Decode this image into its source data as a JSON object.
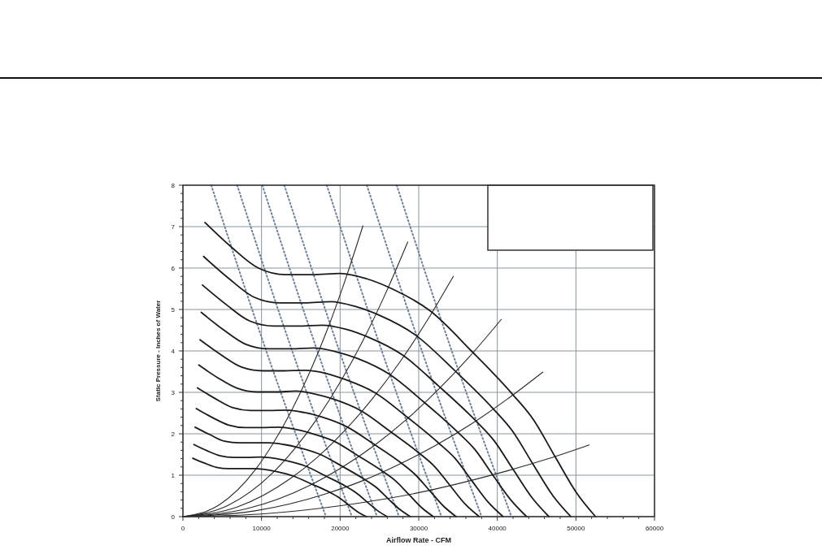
{
  "chart_data": {
    "type": "line",
    "xlabel": "Airflow Rate - CFM",
    "ylabel": "Static Pressure - Inches of Water",
    "xlim": [
      0,
      60000
    ],
    "ylim": [
      0,
      8
    ],
    "xticks": [
      0,
      {
        "value": 2000,
        "label": null
      },
      {
        "value": 4000,
        "label": null
      },
      {
        "value": 6000,
        "label": null
      },
      {
        "value": 8000,
        "label": null
      },
      10000,
      {
        "value": 12000,
        "label": null
      },
      {
        "value": 14000,
        "label": null
      },
      {
        "value": 16000,
        "label": null
      },
      {
        "value": 18000,
        "label": null
      },
      20000,
      {
        "value": 22000,
        "label": null
      },
      {
        "value": 24000,
        "label": null
      },
      {
        "value": 26000,
        "label": null
      },
      {
        "value": 28000,
        "label": null
      },
      30000,
      {
        "value": 32000,
        "label": null
      },
      {
        "value": 34000,
        "label": null
      },
      {
        "value": 36000,
        "label": null
      },
      {
        "value": 38000,
        "label": null
      },
      40000,
      {
        "value": 42000,
        "label": null
      },
      {
        "value": 44000,
        "label": null
      },
      {
        "value": 46000,
        "label": null
      },
      {
        "value": 48000,
        "label": null
      },
      50000,
      {
        "value": 52000,
        "label": null
      },
      {
        "value": 54000,
        "label": null
      },
      {
        "value": 56000,
        "label": null
      },
      {
        "value": 58000,
        "label": null
      },
      60000
    ],
    "yticks": [
      0,
      {
        "value": 0.2,
        "label": null
      },
      {
        "value": 0.4,
        "label": null
      },
      {
        "value": 0.6,
        "label": null
      },
      {
        "value": 0.8,
        "label": null
      },
      1,
      {
        "value": 1.2,
        "label": null
      },
      {
        "value": 1.4,
        "label": null
      },
      {
        "value": 1.6,
        "label": null
      },
      {
        "value": 1.8,
        "label": null
      },
      2,
      {
        "value": 2.2,
        "label": null
      },
      {
        "value": 2.4,
        "label": null
      },
      {
        "value": 2.6,
        "label": null
      },
      {
        "value": 2.8,
        "label": null
      },
      3,
      {
        "value": 3.2,
        "label": null
      },
      {
        "value": 3.4,
        "label": null
      },
      {
        "value": 3.6,
        "label": null
      },
      {
        "value": 3.8,
        "label": null
      },
      4,
      {
        "value": 4.2,
        "label": null
      },
      {
        "value": 4.4,
        "label": null
      },
      {
        "value": 4.6,
        "label": null
      },
      {
        "value": 4.8,
        "label": null
      },
      5,
      {
        "value": 5.2,
        "label": null
      },
      {
        "value": 5.4,
        "label": null
      },
      {
        "value": 5.6,
        "label": null
      },
      {
        "value": 5.8,
        "label": null
      },
      6,
      {
        "value": 6.2,
        "label": null
      },
      {
        "value": 6.4,
        "label": null
      },
      {
        "value": 6.6,
        "label": null
      },
      {
        "value": 6.8,
        "label": null
      },
      7,
      {
        "value": 7.2,
        "label": null
      },
      {
        "value": 7.4,
        "label": null
      },
      {
        "value": 7.6,
        "label": null
      },
      {
        "value": 7.8,
        "label": null
      },
      8
    ],
    "grid": true,
    "marker": "none",
    "line_style": "solid",
    "series": [
      {
        "color": "#6f8196",
        "line_style": "dotted",
        "x": [
          3600,
          10600,
          18200
        ],
        "values": [
          8,
          4,
          0
        ]
      },
      {
        "color": "#6f8196",
        "line_style": "dotted",
        "x": [
          6900,
          13900,
          21500
        ],
        "values": [
          8,
          4,
          0
        ]
      },
      {
        "color": "#6f8196",
        "line_style": "dotted",
        "x": [
          10100,
          17100,
          24700
        ],
        "values": [
          8,
          4,
          0
        ]
      },
      {
        "color": "#6f8196",
        "line_style": "dotted",
        "x": [
          12900,
          19900,
          27500
        ],
        "values": [
          8,
          4,
          0
        ]
      },
      {
        "color": "#6f8196",
        "line_style": "dotted",
        "x": [
          18300,
          25300,
          32900
        ],
        "values": [
          8,
          4,
          0
        ]
      },
      {
        "color": "#6f8196",
        "line_style": "dotted",
        "x": [
          23400,
          30400,
          38000
        ],
        "values": [
          8,
          4,
          0
        ]
      },
      {
        "color": "#6f8196",
        "line_style": "dotted",
        "x": [
          27200,
          34200,
          41800
        ],
        "values": [
          8,
          4,
          0
        ]
      },
      {
        "color": "#2a2a2a",
        "x": [
          0,
          4580,
          9160,
          11450,
          13740,
          16030,
          18320,
          20610,
          22900
        ],
        "values": [
          0,
          0.28,
          1.12,
          1.76,
          2.53,
          3.44,
          4.49,
          5.69,
          7.02
        ]
      },
      {
        "color": "#2a2a2a",
        "x": [
          0,
          5720,
          11440,
          14300,
          17160,
          20020,
          22880,
          25740,
          28600
        ],
        "values": [
          0,
          0.27,
          1.06,
          1.66,
          2.39,
          3.25,
          4.24,
          5.37,
          6.63
        ]
      },
      {
        "color": "#2a2a2a",
        "x": [
          0,
          6880,
          13760,
          17200,
          20640,
          24080,
          27520,
          30960,
          34400
        ],
        "values": [
          0,
          0.23,
          0.93,
          1.45,
          2.09,
          2.84,
          3.71,
          4.7,
          5.8
        ]
      },
      {
        "color": "#2a2a2a",
        "x": [
          0,
          8100,
          16200,
          20250,
          24300,
          28350,
          32400,
          36450,
          40500
        ],
        "values": [
          0,
          0.19,
          0.76,
          1.19,
          1.71,
          2.33,
          3.05,
          3.86,
          4.76
        ]
      },
      {
        "color": "#2a2a2a",
        "x": [
          0,
          9160,
          18320,
          22900,
          27480,
          32060,
          36640,
          41220,
          45800
        ],
        "values": [
          0,
          0.14,
          0.56,
          0.87,
          1.26,
          1.71,
          2.23,
          2.83,
          3.49
        ]
      },
      {
        "color": "#2a2a2a",
        "x": [
          0,
          10340,
          20680,
          25850,
          31020,
          36190,
          41360,
          46530,
          51700
        ],
        "values": [
          0,
          0.07,
          0.28,
          0.43,
          0.62,
          0.85,
          1.11,
          1.4,
          1.73
        ]
      },
      {
        "color": "#1a1a1a",
        "x": [
          2800,
          6200,
          9600,
          13100,
          16500,
          20000,
          23400,
          26600,
          31500,
          36700,
          41900,
          44600,
          47400,
          50100,
          52500
        ],
        "values": [
          7.1,
          6.5,
          6.0,
          5.84,
          5.84,
          5.87,
          5.74,
          5.5,
          4.96,
          4.0,
          2.96,
          2.34,
          1.43,
          0.57,
          0
        ]
      },
      {
        "color": "#1a1a1a",
        "x": [
          2630,
          5830,
          9020,
          12310,
          15510,
          18800,
          22000,
          25000,
          29610,
          34500,
          39390,
          41920,
          44560,
          47090,
          49350
        ],
        "values": [
          6.28,
          5.75,
          5.3,
          5.16,
          5.16,
          5.19,
          5.07,
          4.86,
          4.38,
          3.54,
          2.62,
          2.07,
          1.26,
          0.5,
          0
        ]
      },
      {
        "color": "#1a1a1a",
        "x": [
          2480,
          5500,
          8520,
          11620,
          14640,
          17740,
          20760,
          23590,
          27940,
          32550,
          37170,
          39560,
          42040,
          44440,
          46570
        ],
        "values": [
          5.59,
          5.12,
          4.72,
          4.6,
          4.6,
          4.62,
          4.52,
          4.33,
          3.9,
          3.15,
          2.33,
          1.84,
          1.13,
          0.45,
          0
        ]
      },
      {
        "color": "#1a1a1a",
        "x": [
          2330,
          5160,
          8000,
          10910,
          13740,
          16660,
          19490,
          22160,
          26240,
          30570,
          34900,
          37150,
          39480,
          41730,
          43730
        ],
        "values": [
          4.93,
          4.51,
          4.16,
          4.05,
          4.05,
          4.07,
          3.98,
          3.82,
          3.44,
          2.78,
          2.05,
          1.62,
          0.99,
          0.4,
          0
        ]
      },
      {
        "color": "#1a1a1a",
        "x": [
          2170,
          4810,
          7450,
          10170,
          12800,
          15520,
          18160,
          20640,
          24440,
          28480,
          32510,
          34610,
          36780,
          38880,
          40740
        ],
        "values": [
          4.27,
          3.91,
          3.61,
          3.52,
          3.52,
          3.53,
          3.46,
          3.31,
          2.99,
          2.41,
          1.78,
          1.41,
          0.86,
          0.34,
          0
        ]
      },
      {
        "color": "#1a1a1a",
        "x": [
          2010,
          4450,
          6890,
          9410,
          11850,
          14360,
          16800,
          19100,
          22620,
          26350,
          30080,
          32020,
          34030,
          35970,
          37700
        ],
        "values": [
          3.66,
          3.35,
          3.1,
          3.01,
          3.01,
          3.03,
          2.96,
          2.84,
          2.56,
          2.06,
          1.53,
          1.21,
          0.74,
          0.29,
          0
        ]
      },
      {
        "color": "#1a1a1a",
        "x": [
          1850,
          4100,
          6360,
          8670,
          10920,
          13240,
          15490,
          17610,
          20850,
          24300,
          27740,
          29530,
          31380,
          33170,
          34760
        ],
        "values": [
          3.11,
          2.85,
          2.63,
          2.56,
          2.56,
          2.57,
          2.51,
          2.41,
          2.17,
          1.75,
          1.3,
          1.02,
          0.63,
          0.25,
          0
        ]
      },
      {
        "color": "#1a1a1a",
        "x": [
          1700,
          3760,
          5830,
          7950,
          10020,
          12140,
          14200,
          16150,
          19120,
          22280,
          25430,
          27070,
          28770,
          30410,
          31870
        ],
        "values": [
          2.61,
          2.39,
          2.21,
          2.15,
          2.15,
          2.16,
          2.11,
          2.02,
          1.83,
          1.47,
          1.09,
          0.86,
          0.53,
          0.21,
          0
        ]
      },
      {
        "color": "#1a1a1a",
        "x": [
          1540,
          3420,
          5290,
          7220,
          9090,
          11020,
          12890,
          14660,
          17360,
          20220,
          23090,
          24570,
          26120,
          27610,
          28930
        ],
        "values": [
          2.16,
          1.98,
          1.82,
          1.78,
          1.78,
          1.78,
          1.74,
          1.67,
          1.51,
          1.22,
          0.9,
          0.71,
          0.43,
          0.17,
          0
        ]
      },
      {
        "color": "#1a1a1a",
        "x": [
          1390,
          3070,
          4750,
          6480,
          8170,
          9900,
          11580,
          13170,
          15590,
          18170,
          20740,
          22080,
          23460,
          24800,
          25990
        ],
        "values": [
          1.74,
          1.59,
          1.47,
          1.43,
          1.43,
          1.44,
          1.41,
          1.35,
          1.22,
          0.98,
          0.73,
          0.57,
          0.35,
          0.14,
          0
        ]
      },
      {
        "color": "#1a1a1a",
        "x": [
          1250,
          2760,
          4270,
          5830,
          7340,
          8900,
          10410,
          11840,
          14020,
          16330,
          18650,
          19850,
          21090,
          22290,
          23360
        ],
        "values": [
          1.41,
          1.29,
          1.19,
          1.16,
          1.16,
          1.16,
          1.14,
          1.09,
          0.98,
          0.79,
          0.59,
          0.46,
          0.28,
          0.11,
          0
        ]
      }
    ]
  }
}
